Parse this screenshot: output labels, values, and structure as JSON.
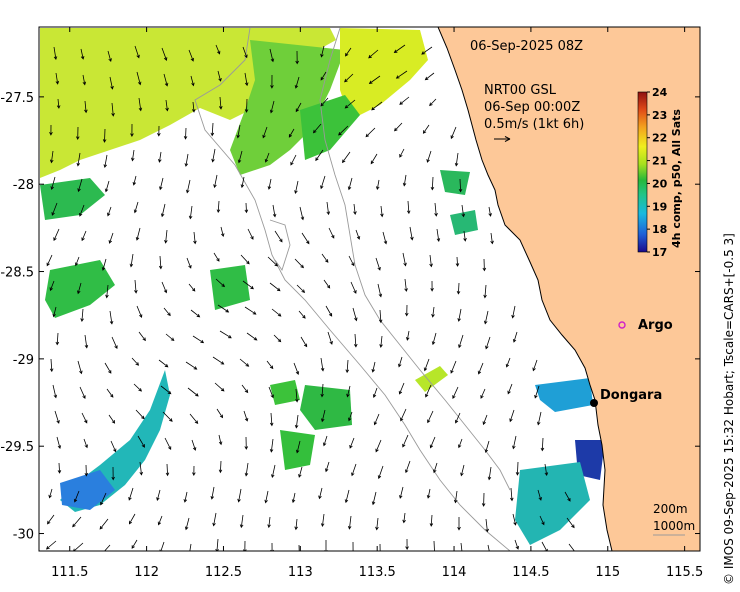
{
  "title": "06-Sep-2025 08Z",
  "current_info": {
    "source": "NRT00 GSL",
    "time": "06-Sep 00:00Z",
    "scale": "0.5m/s (1kt 6h)"
  },
  "colorbar": {
    "label": "4h comp, p50, All Sats",
    "ticks": [
      17,
      18,
      19,
      20,
      21,
      22,
      23,
      24
    ],
    "stops": [
      "#1a0a8c",
      "#1f5fd6",
      "#19b9e0",
      "#22c486",
      "#27b83a",
      "#a8e01e",
      "#f0ee1e",
      "#f4a21e",
      "#e04a18",
      "#8e1010"
    ]
  },
  "depth_legend": [
    "200m",
    "1000m"
  ],
  "places": [
    {
      "name": "Argo",
      "lon": 115.1,
      "lat": -28.83,
      "marker": "circle-magenta"
    },
    {
      "name": "Dongara",
      "lon": 114.93,
      "lat": -29.25,
      "marker": "dot-black"
    }
  ],
  "axes": {
    "x_ticks": [
      "111.5",
      "112",
      "112.5",
      "113",
      "113.5",
      "114",
      "114.5",
      "115",
      "115.5"
    ],
    "y_ticks": [
      "-27.5",
      "-28",
      "-28.5",
      "-29",
      "-29.5",
      "-30"
    ],
    "x_range": [
      111.3,
      115.6
    ],
    "y_range": [
      -30.1,
      -27.1
    ]
  },
  "credit": "© IMOS 09-Sep-2025 15:32 Hobart; Tscale=CARS+[-0.5 3]",
  "colors": {
    "land": "#fdc898",
    "arrow": "#000000",
    "contour": "#9a9a9a"
  }
}
